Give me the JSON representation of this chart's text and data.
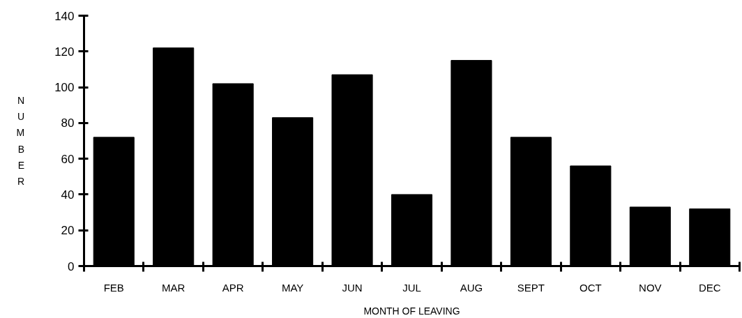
{
  "chart_data": {
    "type": "bar",
    "xlabel": "MONTH OF LEAVING",
    "ylabel": "NUMBER",
    "categories": [
      "FEB",
      "MAR",
      "APR",
      "MAY",
      "JUN",
      "JUL",
      "AUG",
      "SEPT",
      "OCT",
      "NOV",
      "DEC"
    ],
    "values": [
      72,
      122,
      102,
      83,
      107,
      40,
      115,
      72,
      56,
      33,
      32
    ],
    "color": "#000000",
    "ylim": [
      0,
      140
    ],
    "yticks": [
      0,
      20,
      40,
      60,
      80,
      100,
      120,
      140
    ],
    "grid": false
  }
}
